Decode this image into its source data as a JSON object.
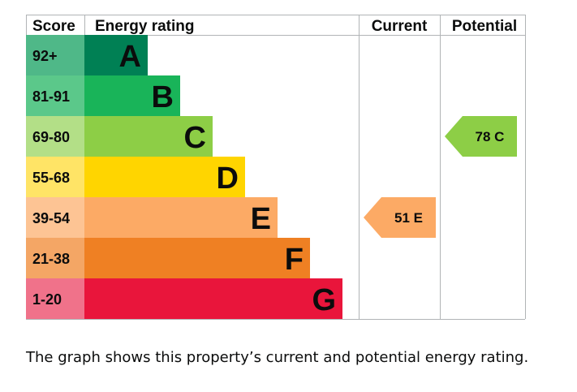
{
  "header": {
    "score": "Score",
    "energy_rating": "Energy rating",
    "current": "Current",
    "potential": "Potential"
  },
  "chart_data": {
    "type": "bar",
    "bands": [
      {
        "score": "92+",
        "letter": "A",
        "color": "#008054",
        "score_bg": "#4fb888",
        "score_upper": 100
      },
      {
        "score": "81-91",
        "letter": "B",
        "color": "#19b459",
        "score_bg": "#5bc88a",
        "score_upper": 91
      },
      {
        "score": "69-80",
        "letter": "C",
        "color": "#8dce46",
        "score_bg": "#b3df87",
        "score_upper": 80
      },
      {
        "score": "55-68",
        "letter": "D",
        "color": "#ffd500",
        "score_bg": "#ffe466",
        "score_upper": 68
      },
      {
        "score": "39-54",
        "letter": "E",
        "color": "#fcaa65",
        "score_bg": "#fdc494",
        "score_upper": 54
      },
      {
        "score": "21-38",
        "letter": "F",
        "color": "#ef8023",
        "score_bg": "#f4a665",
        "score_upper": 38
      },
      {
        "score": "1-20",
        "letter": "G",
        "color": "#e9153b",
        "score_bg": "#f0728a",
        "score_upper": 20
      }
    ],
    "current": {
      "value": 51,
      "letter": "E",
      "label": "51  E",
      "color": "#fcaa65"
    },
    "potential": {
      "value": 78,
      "letter": "C",
      "label": "78  C",
      "color": "#8dce46"
    }
  },
  "caption": "The graph shows this property’s current and potential energy rating."
}
